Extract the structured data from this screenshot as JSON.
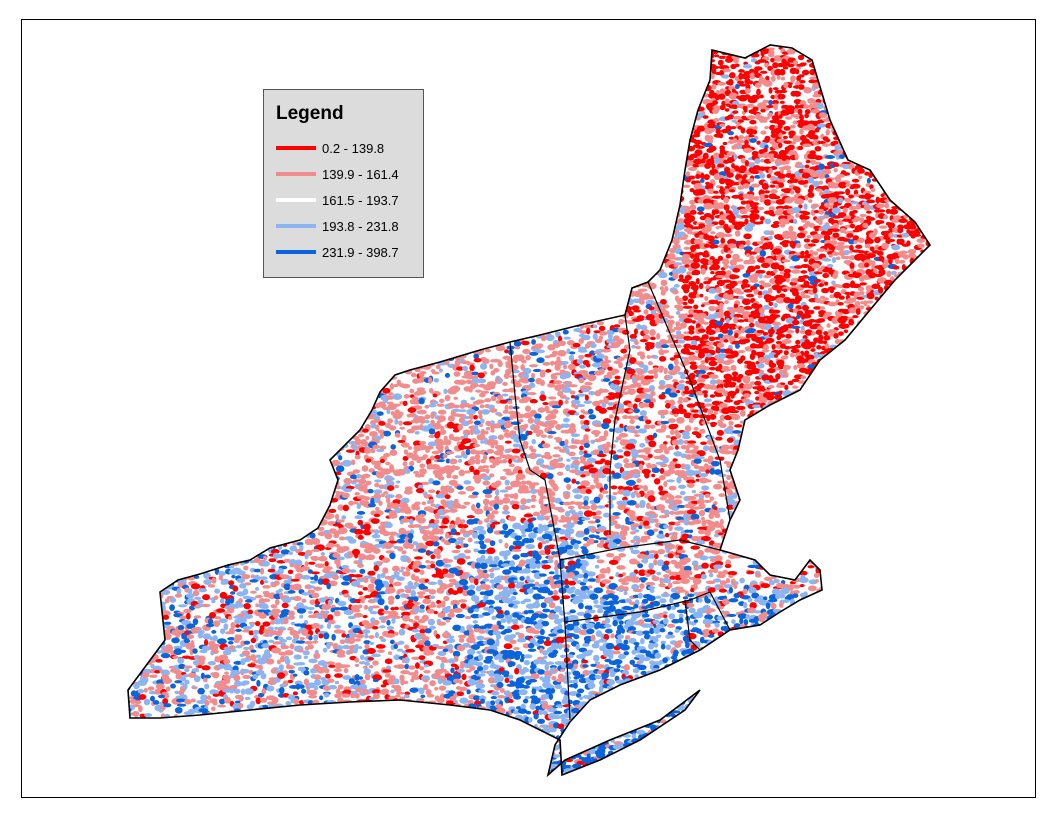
{
  "legend": {
    "title": "Legend",
    "classes": [
      {
        "label": "0.2 - 139.8",
        "color": "#ff0000"
      },
      {
        "label": "139.9 - 161.4",
        "color": "#f28c8c"
      },
      {
        "label": "161.5 - 193.7",
        "color": "#ffffff"
      },
      {
        "label": "193.8 - 231.8",
        "color": "#8cb4f0"
      },
      {
        "label": "231.9 - 398.7",
        "color": "#0a64dc"
      }
    ]
  }
}
